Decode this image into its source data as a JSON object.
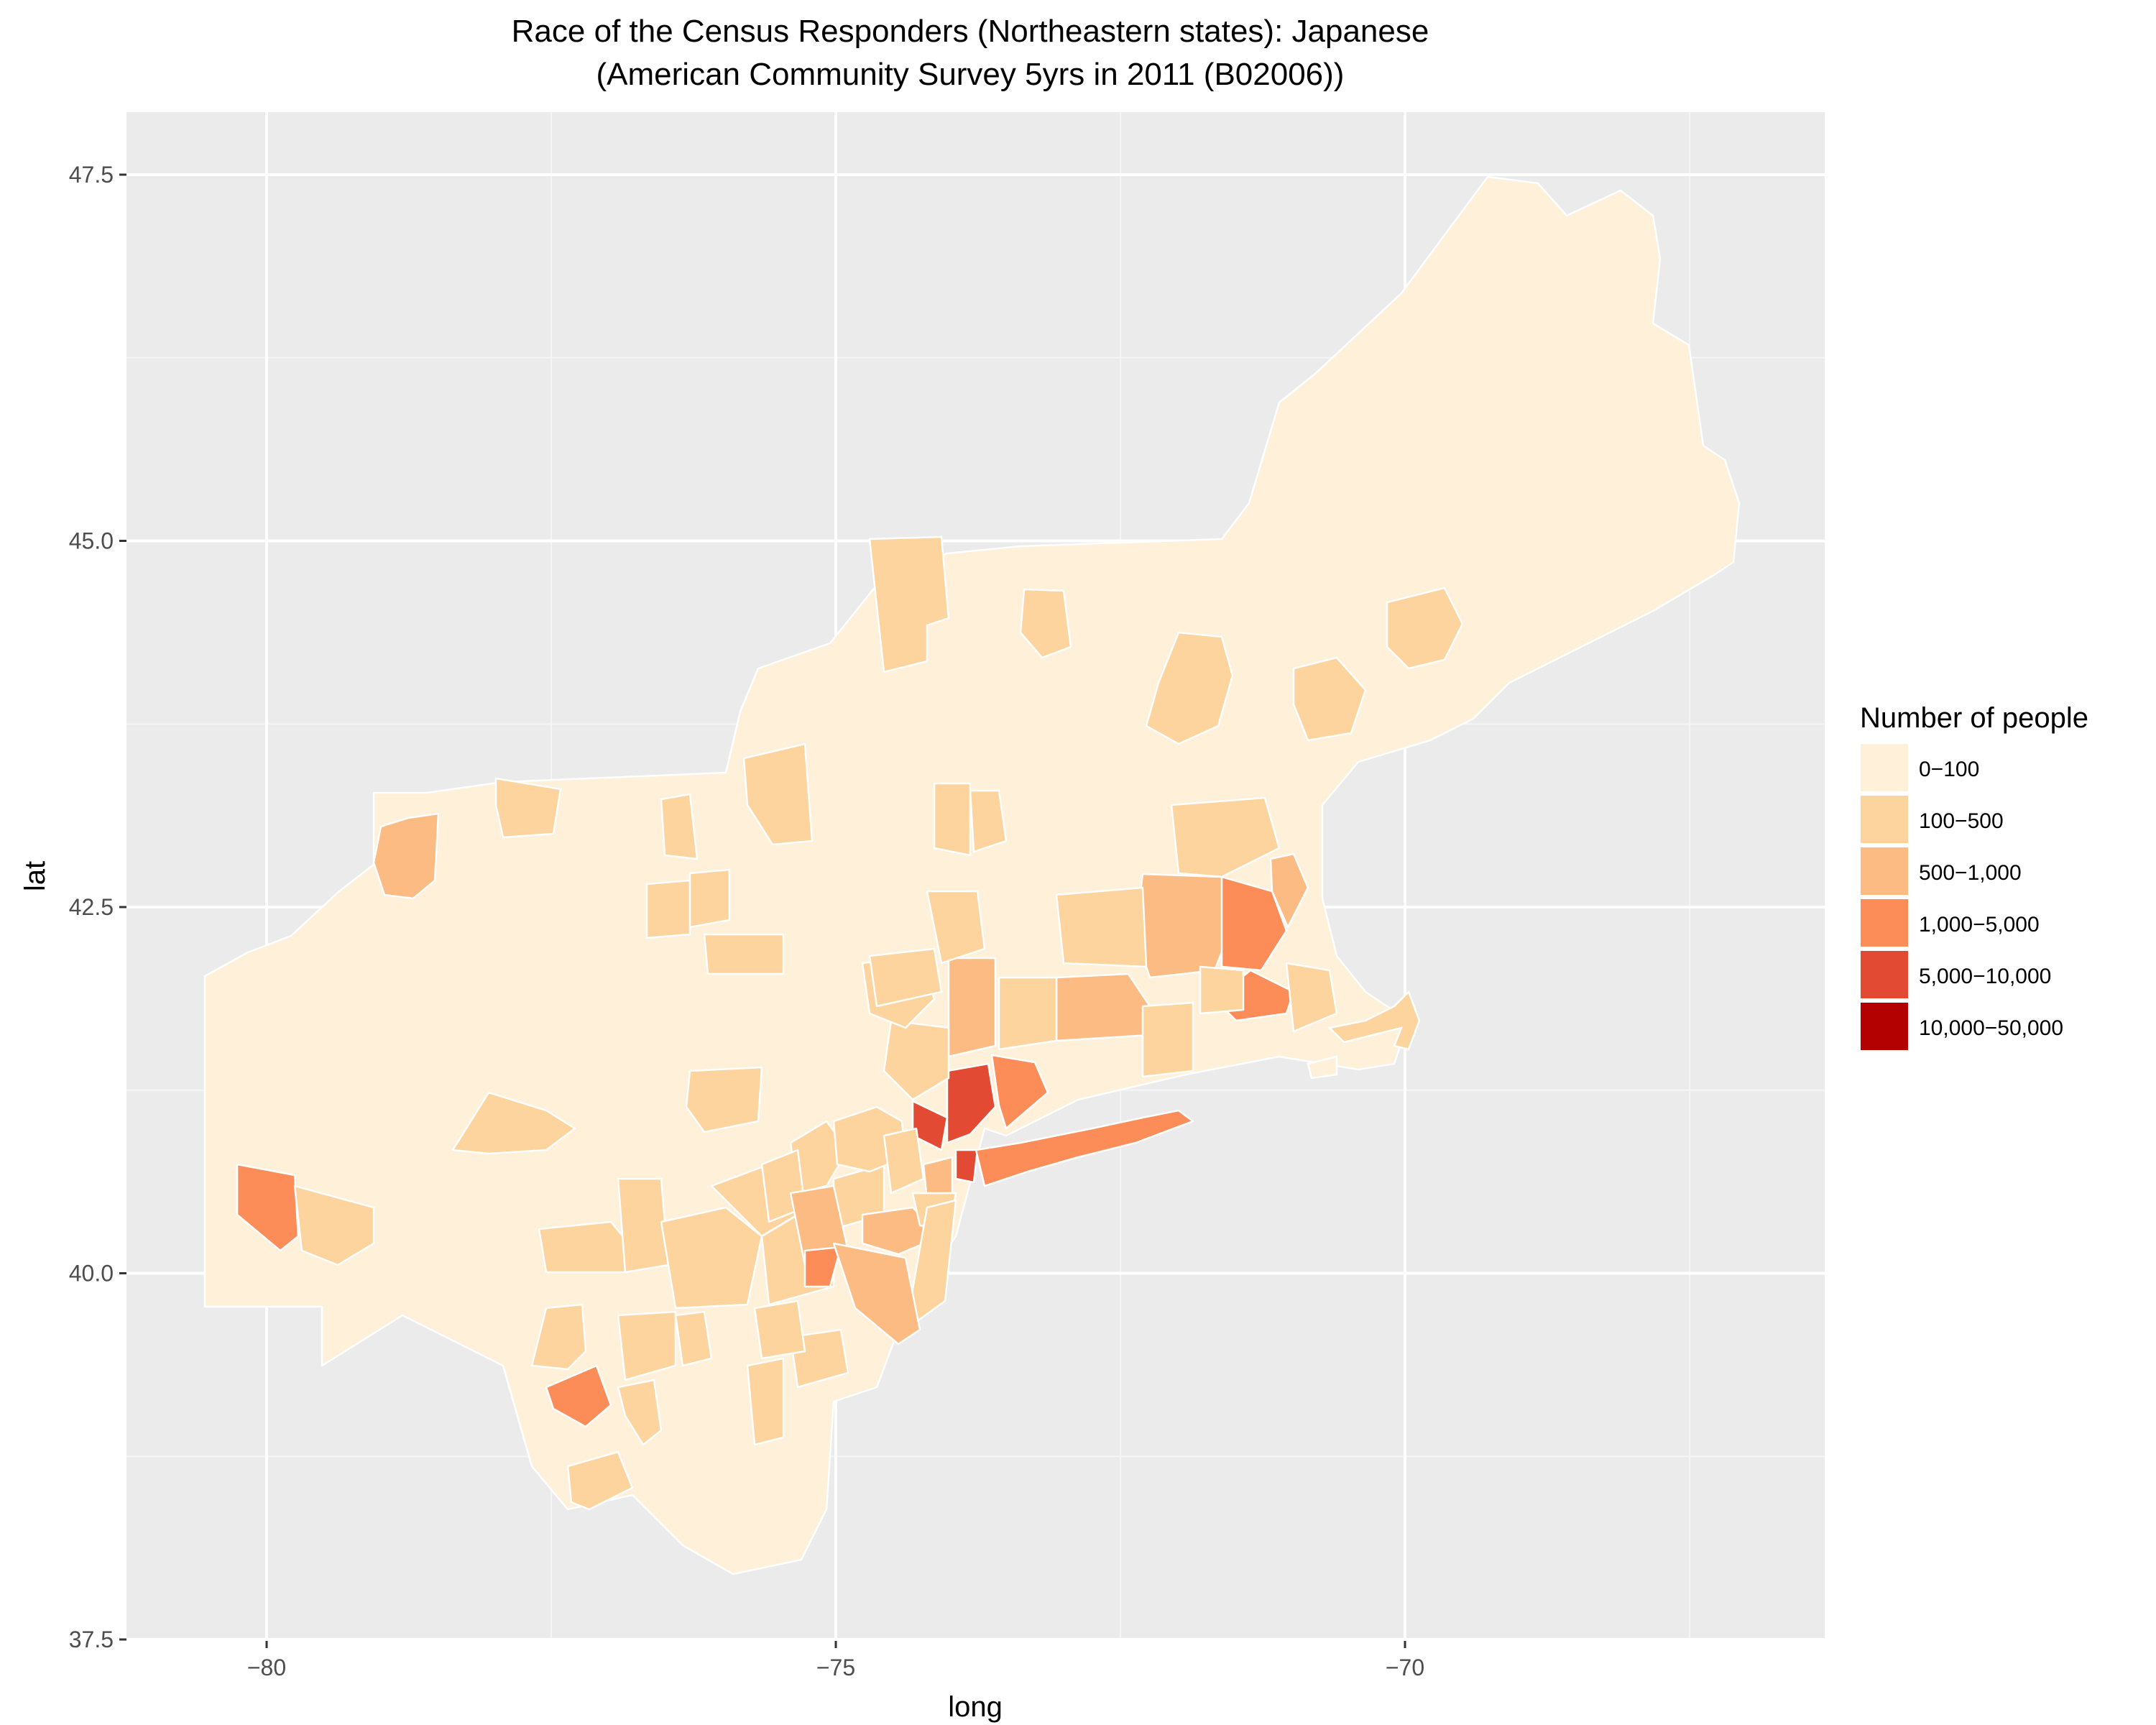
{
  "chart_data": {
    "type": "choropleth",
    "title": "Race of the Census Responders (Northeastern states): Japanese",
    "subtitle": "(American Community Survey 5yrs in 2011 (B02006))",
    "xlabel": "long",
    "ylabel": "lat",
    "xlim": [
      -81,
      -66
    ],
    "ylim": [
      37.4,
      48.0
    ],
    "x_ticks": [
      -80,
      -75,
      -70
    ],
    "x_tick_labels": [
      "−80",
      "−75",
      "−70"
    ],
    "y_ticks": [
      37.5,
      40.0,
      42.5,
      45.0,
      47.5
    ],
    "y_tick_labels": [
      "37.5",
      "40.0",
      "42.5",
      "45.0",
      "47.5"
    ],
    "grid": true,
    "legend": {
      "title": "Number of people",
      "placement": "right",
      "entries": [
        {
          "label": "0−100",
          "color": "#FEF0D9"
        },
        {
          "label": "100−500",
          "color": "#FDD49E"
        },
        {
          "label": "500−1,000",
          "color": "#FDBB84"
        },
        {
          "label": "1,000−5,000",
          "color": "#FC8D59"
        },
        {
          "label": "5,000−10,000",
          "color": "#E34A33"
        },
        {
          "label": "10,000−50,000",
          "color": "#B30000"
        }
      ]
    },
    "colors": {
      "panel_background": "#EBEBEB",
      "grid_major": "#FFFFFF",
      "grid_minor": "#F5F5F5",
      "county_border": "#FFFFFF"
    }
  }
}
